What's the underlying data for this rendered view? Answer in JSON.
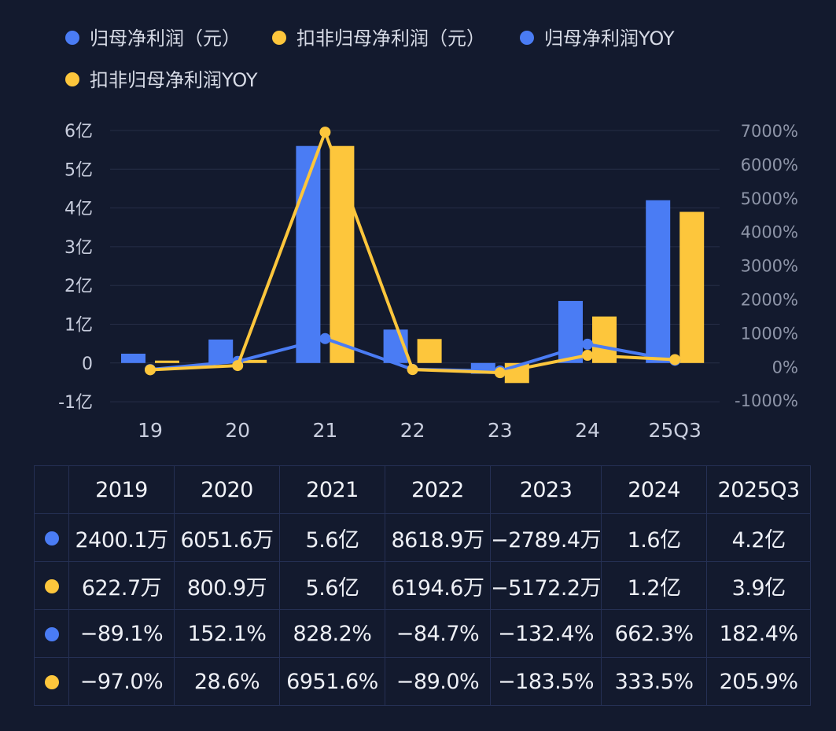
{
  "colors": {
    "blue": "#4a7cf4",
    "yellow": "#fdc63c",
    "background": "#131a2e"
  },
  "chart_data": {
    "type": "bar",
    "legend_position": "top-left",
    "grid": true,
    "categories": [
      "19",
      "20",
      "21",
      "22",
      "23",
      "24",
      "25Q3"
    ],
    "y_left": {
      "ticks": [
        "6亿",
        "5亿",
        "4亿",
        "3亿",
        "2亿",
        "1亿",
        "0",
        "-1亿"
      ],
      "range": [
        -1,
        6
      ],
      "unit": "亿"
    },
    "y_right": {
      "ticks": [
        "7000%",
        "6000%",
        "5000%",
        "4000%",
        "3000%",
        "2000%",
        "1000%",
        "0%",
        "-1000%"
      ],
      "range": [
        -1000,
        7000
      ]
    },
    "series": [
      {
        "name": "归母净利润（元）",
        "type": "bar",
        "axis": "left",
        "color": "#4a7cf4",
        "values": [
          0.24,
          0.605,
          5.6,
          0.862,
          -0.279,
          1.6,
          4.2
        ]
      },
      {
        "name": "扣非归母净利润（元）",
        "type": "bar",
        "axis": "left",
        "color": "#fdc63c",
        "values": [
          0.0623,
          0.0801,
          5.6,
          0.619,
          -0.517,
          1.2,
          3.9
        ]
      },
      {
        "name": "归母净利润YOY",
        "type": "line",
        "axis": "right",
        "color": "#4a7cf4",
        "values": [
          -89.1,
          152.1,
          828.2,
          -84.7,
          -132.4,
          662.3,
          182.4
        ]
      },
      {
        "name": "扣非归母净利润YOY",
        "type": "line",
        "axis": "right",
        "color": "#fdc63c",
        "values": [
          -97.0,
          28.6,
          6951.6,
          -89.0,
          -183.5,
          333.5,
          205.9
        ]
      }
    ]
  },
  "table": {
    "headers": [
      "2019",
      "2020",
      "2021",
      "2022",
      "2023",
      "2024",
      "2025Q3"
    ],
    "rows": [
      {
        "color": "#4a7cf4",
        "cells": [
          "2400.1万",
          "6051.6万",
          "5.6亿",
          "8618.9万",
          "−2789.4万",
          "1.6亿",
          "4.2亿"
        ]
      },
      {
        "color": "#fdc63c",
        "cells": [
          "622.7万",
          "800.9万",
          "5.6亿",
          "6194.6万",
          "−5172.2万",
          "1.2亿",
          "3.9亿"
        ]
      },
      {
        "color": "#4a7cf4",
        "cells": [
          "−89.1%",
          "152.1%",
          "828.2%",
          "−84.7%",
          "−132.4%",
          "662.3%",
          "182.4%"
        ]
      },
      {
        "color": "#fdc63c",
        "cells": [
          "−97.0%",
          "28.6%",
          "6951.6%",
          "−89.0%",
          "−183.5%",
          "333.5%",
          "205.9%"
        ]
      }
    ]
  }
}
